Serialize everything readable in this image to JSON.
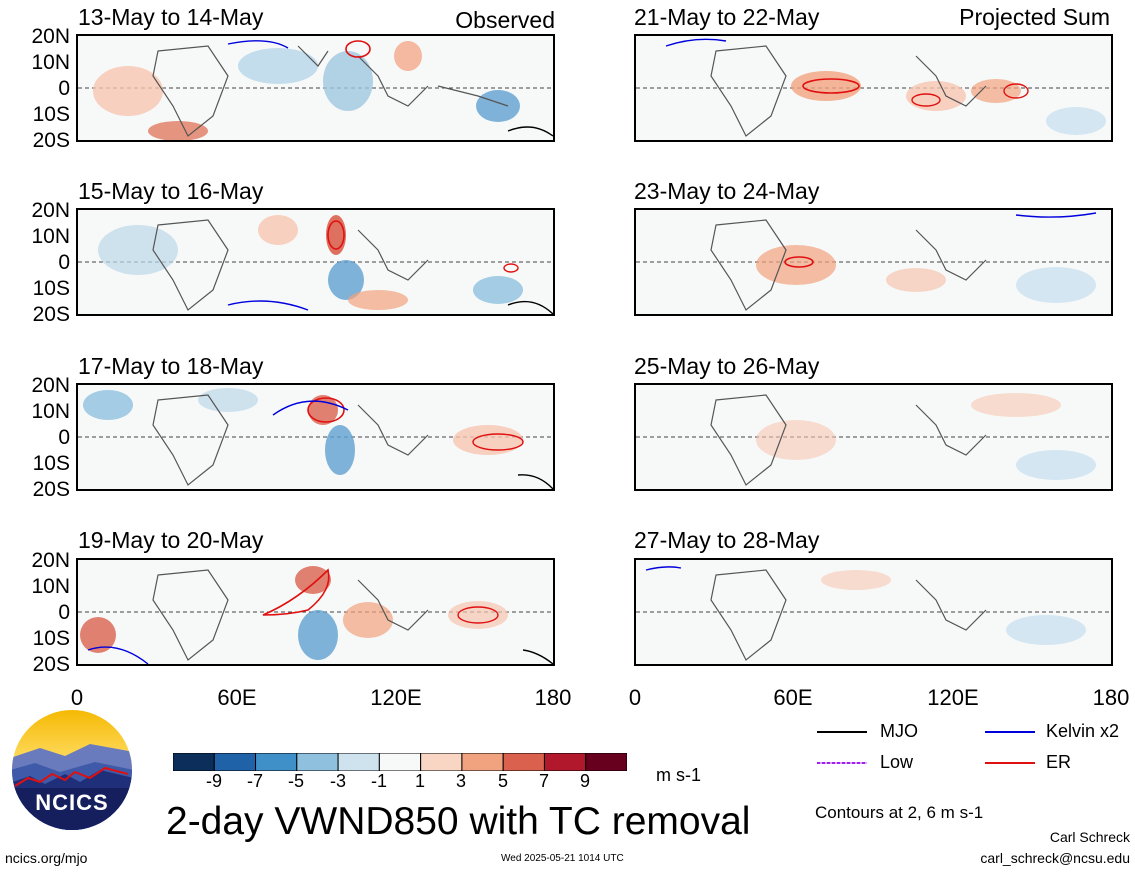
{
  "panels_left": [
    {
      "title": "13-May to 14-May",
      "tag": "Observed"
    },
    {
      "title": "15-May to 16-May",
      "tag": ""
    },
    {
      "title": "17-May to 18-May",
      "tag": ""
    },
    {
      "title": "19-May to 20-May",
      "tag": ""
    }
  ],
  "panels_right": [
    {
      "title": "21-May to 22-May",
      "tag": "Projected Sum"
    },
    {
      "title": "23-May to 24-May",
      "tag": ""
    },
    {
      "title": "25-May to 26-May",
      "tag": ""
    },
    {
      "title": "27-May to 28-May",
      "tag": ""
    }
  ],
  "lat_labels": [
    "20N",
    "10N",
    "0",
    "10S",
    "20S"
  ],
  "lon_labels": [
    "0",
    "60E",
    "120E",
    "180"
  ],
  "colorbar": {
    "ticks": [
      "-9",
      "-7",
      "-5",
      "-3",
      "-1",
      "1",
      "3",
      "5",
      "7",
      "9"
    ],
    "colors": [
      "#0b2f5a",
      "#1f62a8",
      "#3f8fc8",
      "#8fc1de",
      "#cfe3ef",
      "#f7f9f9",
      "#f9d6c3",
      "#f1a27f",
      "#d9614e",
      "#b2182b",
      "#67001f"
    ],
    "units": "m s-1"
  },
  "legend": {
    "mjo": {
      "label": "MJO",
      "color": "#000000"
    },
    "kelvin": {
      "label": "Kelvin x2",
      "color": "#0000dd"
    },
    "low": {
      "label": "Low",
      "color": "#a020f0"
    },
    "er": {
      "label": "ER",
      "color": "#e01010"
    },
    "contours_note": "Contours at 2, 6 m s-1"
  },
  "title": "2-day VWND850 with TC removal",
  "logo_text": "NCICS",
  "url": "ncics.org/mjo",
  "timestamp": "Wed 2025-05-21 1014 UTC",
  "author": "Carl Schreck",
  "email": "carl_schreck@ncsu.edu"
}
